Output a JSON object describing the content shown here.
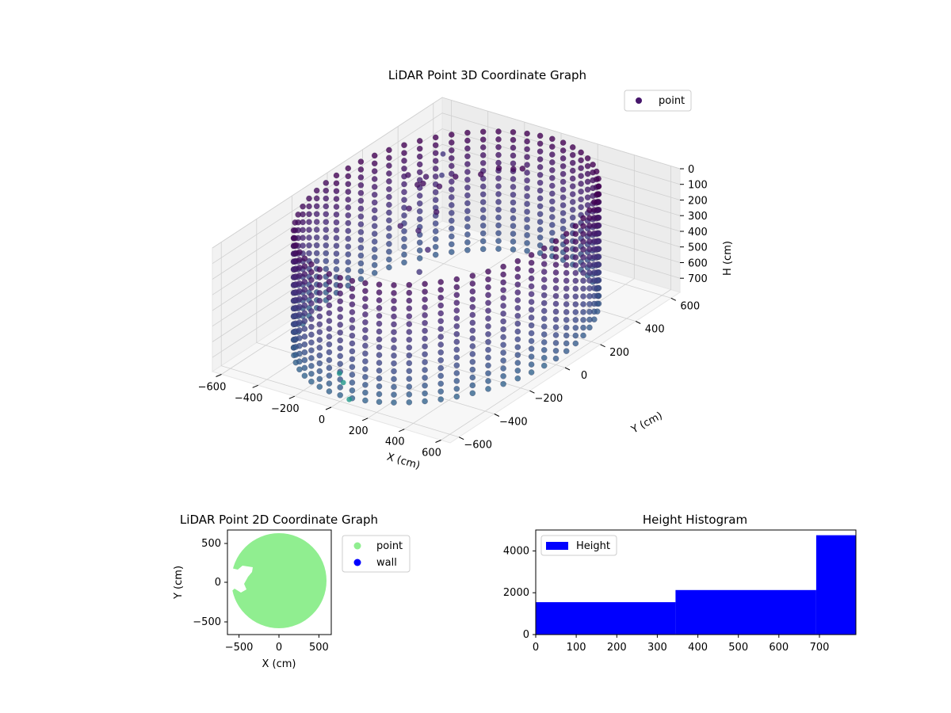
{
  "chart_data": [
    {
      "type": "scatter",
      "projection": "3d",
      "title": "LiDAR Point 3D Coordinate Graph",
      "xlabel": "X (cm)",
      "ylabel": "Y (cm)",
      "zlabel": "H (cm)",
      "x_ticks": [
        "−600",
        "−400",
        "−200",
        "0",
        "200",
        "400",
        "600"
      ],
      "y_ticks": [
        "−600",
        "−400",
        "−200",
        "0",
        "200",
        "400",
        "600"
      ],
      "z_ticks": [
        "0",
        "100",
        "200",
        "300",
        "400",
        "500",
        "600",
        "700"
      ],
      "xlim": [
        -650,
        650
      ],
      "ylim": [
        -650,
        650
      ],
      "zlim": [
        0,
        790
      ],
      "z_inverted": true,
      "grid": true,
      "legend": {
        "position": "upper right",
        "entries": [
          {
            "label": "point",
            "color": "#46166b"
          }
        ]
      },
      "colormap": "viridis",
      "series": [
        {
          "name": "point",
          "shape": "cylindrical wall",
          "radius": 600,
          "height_range": [
            0,
            790
          ],
          "angle_step_deg": 6,
          "height_step": 50
        }
      ],
      "outliers": [
        {
          "x": -520,
          "y": 520,
          "h": 220
        },
        {
          "x": -430,
          "y": 420,
          "h": 250
        },
        {
          "x": -100,
          "y": -500,
          "h": 720
        },
        {
          "x": 50,
          "y": -600,
          "h": 760
        },
        {
          "x": -60,
          "y": -520,
          "h": 750
        }
      ],
      "interior_clutter": [
        {
          "x": -300,
          "y": 180,
          "h": 80
        },
        {
          "x": -250,
          "y": 220,
          "h": 110
        },
        {
          "x": -200,
          "y": 260,
          "h": 60
        },
        {
          "x": -100,
          "y": 300,
          "h": 40
        },
        {
          "x": -50,
          "y": 350,
          "h": 20
        },
        {
          "x": 0,
          "y": 380,
          "h": 30
        },
        {
          "x": 50,
          "y": 380,
          "h": 10
        },
        {
          "x": -150,
          "y": 100,
          "h": 150
        },
        {
          "x": -200,
          "y": 50,
          "h": 250
        },
        {
          "x": -100,
          "y": 0,
          "h": 300
        },
        {
          "x": -50,
          "y": -100,
          "h": 350
        },
        {
          "x": -250,
          "y": 0,
          "h": 200
        },
        {
          "x": -300,
          "y": 100,
          "h": 180
        },
        {
          "x": -350,
          "y": 200,
          "h": 120
        },
        {
          "x": -400,
          "y": 300,
          "h": 160
        },
        {
          "x": -450,
          "y": 250,
          "h": 130
        }
      ]
    },
    {
      "type": "scatter",
      "title": "LiDAR Point 2D Coordinate Graph",
      "xlabel": "X (cm)",
      "ylabel": "Y (cm)",
      "x_ticks": [
        "−500",
        "0",
        "500"
      ],
      "y_ticks": [
        "500",
        "0",
        "−500"
      ],
      "xlim": [
        -650,
        650
      ],
      "ylim": [
        -650,
        650
      ],
      "legend": {
        "position": "outside right",
        "entries": [
          {
            "label": "point",
            "color": "#90ee90"
          },
          {
            "label": "wall",
            "color": "#0000ff"
          }
        ]
      },
      "series": [
        {
          "name": "point",
          "shape": "filled disc",
          "radius": 600,
          "color": "#90ee90"
        },
        {
          "name": "wall",
          "color": "#0000ff",
          "values": []
        }
      ]
    },
    {
      "type": "bar",
      "subtype": "histogram",
      "title": "Height Histogram",
      "x_ticks": [
        "0",
        "100",
        "200",
        "300",
        "400",
        "500",
        "600",
        "700"
      ],
      "y_ticks": [
        "0",
        "2000",
        "4000"
      ],
      "xlim": [
        0,
        790
      ],
      "ylim": [
        0,
        5000
      ],
      "legend": {
        "position": "upper left",
        "entries": [
          {
            "label": "Height",
            "color": "#0000ff"
          }
        ]
      },
      "series": [
        {
          "name": "Height",
          "color": "#0000ff",
          "bins": [
            {
              "start": 0,
              "end": 345,
              "count": 1550
            },
            {
              "start": 345,
              "end": 692,
              "count": 2130
            },
            {
              "start": 692,
              "end": 790,
              "count": 4750
            }
          ]
        }
      ]
    }
  ]
}
